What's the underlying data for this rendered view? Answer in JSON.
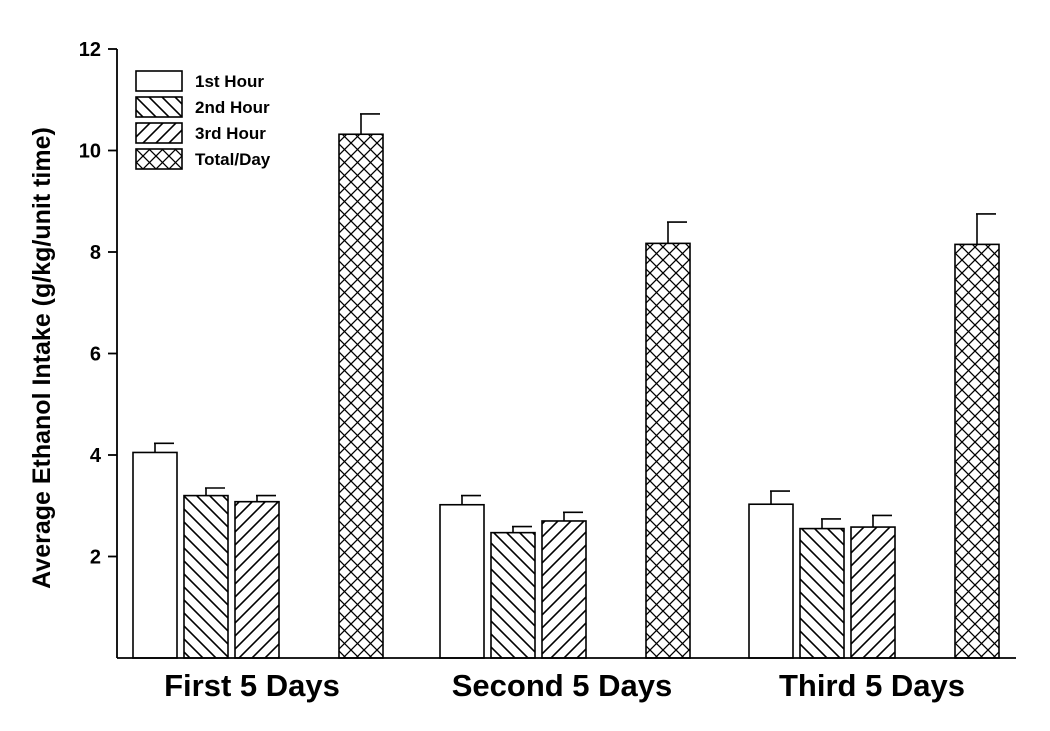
{
  "chart_data": {
    "type": "bar",
    "title": "",
    "xlabel": "",
    "ylabel": "Average Ethanol Intake (g/kg/unit time)",
    "ylim": [
      0,
      12
    ],
    "yticks": [
      2,
      4,
      6,
      8,
      10,
      12
    ],
    "grid": false,
    "legend_position": "top-left",
    "categories": [
      "First 5 Days",
      "Second 5 Days",
      "Third 5 Days"
    ],
    "series": [
      {
        "name": "1st Hour",
        "pattern": "none",
        "values": [
          4.05,
          3.02,
          3.03
        ],
        "errors": [
          0.18,
          0.18,
          0.26
        ]
      },
      {
        "name": "2nd Hour",
        "pattern": "diag-back",
        "values": [
          3.2,
          2.47,
          2.55
        ],
        "errors": [
          0.15,
          0.12,
          0.19
        ]
      },
      {
        "name": "3rd Hour",
        "pattern": "diag-fwd",
        "values": [
          3.08,
          2.7,
          2.58
        ],
        "errors": [
          0.12,
          0.17,
          0.23
        ]
      },
      {
        "name": "Total/Day",
        "pattern": "cross",
        "values": [
          10.32,
          8.17,
          8.15
        ],
        "errors": [
          0.4,
          0.42,
          0.6
        ]
      }
    ],
    "colors": {
      "stroke": "#000000",
      "fill": "#ffffff"
    }
  }
}
